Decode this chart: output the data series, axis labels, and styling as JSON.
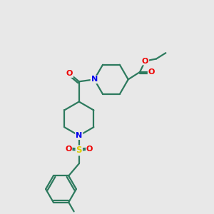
{
  "background_color": "#e8e8e8",
  "bond_color": "#2d7a5e",
  "nitrogen_color": "#0000ee",
  "oxygen_color": "#ee0000",
  "sulfur_color": "#ddcc00",
  "line_width": 1.6,
  "figsize": [
    3.0,
    3.0
  ],
  "dpi": 100,
  "xlim": [
    0,
    10
  ],
  "ylim": [
    0,
    10
  ]
}
